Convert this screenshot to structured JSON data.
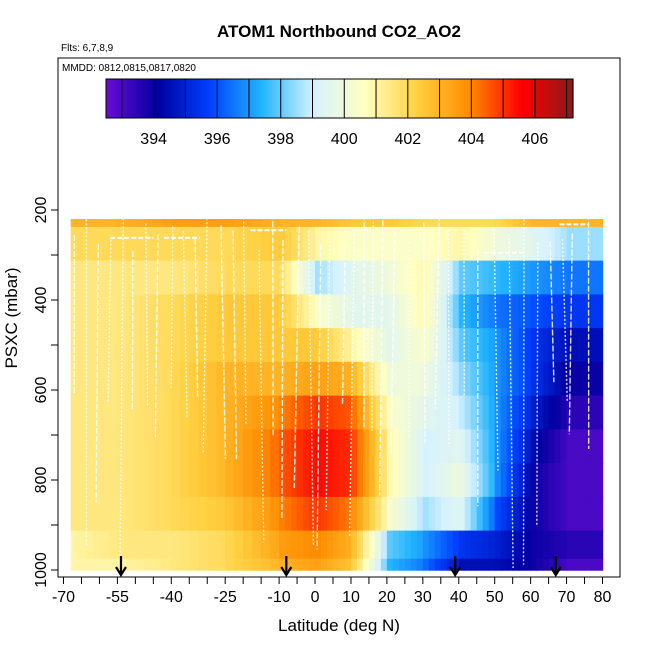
{
  "chart_data": {
    "type": "heatmap",
    "title": "ATOM1 Northbound CO2_AO2",
    "subtitle_flights": "Flts: 6,7,8,9",
    "subtitle_dates": "MMDD: 0812,0815,0817,0820",
    "xlabel": "Latitude (deg N)",
    "ylabel": "PSXC (mbar)",
    "xlim": [
      -70,
      80
    ],
    "ylim": [
      1000,
      150
    ],
    "x_ticks": [
      -70,
      -55,
      -40,
      -25,
      -10,
      0,
      10,
      20,
      30,
      40,
      50,
      60,
      70,
      80
    ],
    "y_ticks": [
      200,
      400,
      600,
      800,
      1000
    ],
    "colorbar": {
      "range": [
        392.5,
        407.2
      ],
      "ticks": [
        394,
        396,
        398,
        400,
        402,
        404,
        406
      ],
      "colors": [
        "#6a0dd6",
        "#0000a0",
        "#0040ff",
        "#22b4ff",
        "#d6f2ff",
        "#ffffc0",
        "#ffd040",
        "#ff8c00",
        "#ff0000",
        "#8b1a1a"
      ]
    },
    "grid": {
      "lat_edges": [
        -68,
        -55,
        -40,
        -25,
        -10,
        0,
        10,
        20,
        30,
        40,
        50,
        60,
        70,
        80
      ],
      "pressure_levels": [
        200,
        275,
        350,
        425,
        500,
        575,
        650,
        725,
        800,
        875,
        950,
        1000
      ],
      "co2": [
        [
          403.0,
          403.0,
          403.5,
          403.5,
          403.0,
          403.0,
          402.5,
          402.5,
          402.0,
          402.0,
          402.0,
          403.0,
          403.0
        ],
        [
          402.0,
          402.0,
          402.0,
          402.0,
          402.5,
          401.0,
          400.5,
          400.5,
          400.5,
          401.0,
          400.0,
          399.5,
          398.5
        ],
        [
          401.5,
          401.5,
          401.5,
          402.0,
          402.0,
          398.5,
          399.5,
          400.0,
          401.0,
          398.0,
          397.5,
          397.0,
          396.5
        ],
        [
          401.5,
          401.5,
          402.0,
          402.5,
          402.5,
          400.5,
          399.5,
          399.5,
          401.0,
          397.5,
          396.5,
          396.0,
          395.5
        ],
        [
          401.5,
          401.5,
          402.0,
          402.5,
          402.5,
          402.5,
          401.0,
          399.5,
          400.5,
          398.0,
          397.0,
          395.5,
          394.5
        ],
        [
          401.5,
          401.5,
          402.0,
          403.0,
          403.0,
          403.5,
          403.0,
          400.0,
          400.0,
          398.5,
          397.0,
          395.5,
          394.0
        ],
        [
          401.5,
          401.5,
          402.0,
          403.0,
          404.0,
          405.0,
          404.5,
          400.5,
          399.5,
          399.0,
          397.0,
          395.0,
          393.5
        ],
        [
          401.5,
          401.5,
          402.0,
          403.0,
          404.5,
          405.5,
          405.0,
          401.0,
          399.0,
          399.5,
          397.0,
          394.5,
          393.0
        ],
        [
          401.5,
          401.5,
          402.0,
          403.0,
          404.5,
          405.5,
          405.0,
          401.0,
          399.0,
          400.0,
          397.0,
          394.0,
          393.0
        ],
        [
          401.5,
          401.5,
          402.0,
          402.5,
          404.0,
          405.0,
          404.0,
          400.5,
          398.5,
          399.5,
          396.0,
          394.0,
          393.0
        ],
        [
          401.0,
          401.5,
          401.5,
          402.0,
          403.5,
          404.0,
          403.0,
          398.0,
          397.0,
          395.5,
          395.0,
          394.0,
          393.5
        ],
        [
          401.0,
          401.0,
          401.5,
          402.0,
          403.0,
          403.5,
          402.5,
          397.5,
          396.5,
          394.5,
          394.5,
          394.0,
          393.0
        ]
      ]
    },
    "arrow_latitudes": [
      -54,
      -8,
      39,
      67
    ]
  }
}
